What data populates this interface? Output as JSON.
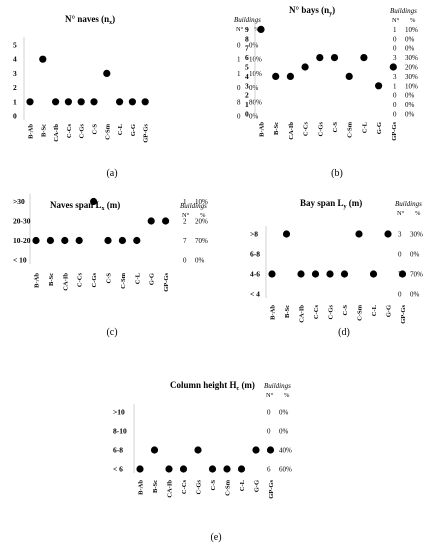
{
  "labels": {
    "buildings": "Buildings",
    "n_star": "N°",
    "pct": "%"
  },
  "chart_data": [
    {
      "type": "scatter",
      "id": "a",
      "title": "N° naves (n",
      "title_sub": "x",
      "title_end": ")",
      "caption": "(a)",
      "categories": [
        "B-Ab",
        "B-Sc",
        "CA-Ib",
        "C-Cs",
        "C-Gs",
        "C-S",
        "C-Sm",
        "C-L",
        "G-G",
        "GP-Gs"
      ],
      "y_ticks": [
        "0",
        "1",
        "2",
        "3",
        "4",
        "5"
      ],
      "values": [
        1,
        4,
        1,
        1,
        1,
        1,
        3,
        1,
        1,
        1
      ],
      "buildings_n": [
        "0",
        "8",
        "0",
        "1",
        "1",
        "0"
      ],
      "buildings_pct": [
        "0%",
        "80%",
        "0%",
        "10%",
        "10%",
        "0%"
      ]
    },
    {
      "type": "scatter",
      "id": "b",
      "title": "N° bays (n",
      "title_sub": "y",
      "title_end": ")",
      "caption": "(b)",
      "categories": [
        "B-Ab",
        "B-Sc",
        "CA-Ib",
        "C-Cs",
        "C-Gs",
        "C-S",
        "C-Sm",
        "C-L",
        "G-G",
        "GP-Gs"
      ],
      "y_ticks": [
        "0",
        "1",
        "2",
        "3",
        "4",
        "5",
        "6",
        "7",
        "8",
        "9"
      ],
      "values": [
        9,
        4,
        4,
        5,
        6,
        6,
        4,
        6,
        3,
        5
      ],
      "buildings_n": [
        "0",
        "0",
        "0",
        "1",
        "3",
        "2",
        "3",
        "0",
        "0",
        "1"
      ],
      "buildings_pct": [
        "0%",
        "0%",
        "0%",
        "10%",
        "30%",
        "20%",
        "30%",
        "0%",
        "0%",
        "10%"
      ]
    },
    {
      "type": "scatter",
      "id": "c",
      "title": "Naves span L",
      "title_sub": "x",
      "title_end": " (m)",
      "caption": "(c)",
      "categories": [
        "B-Ab",
        "B-Sc",
        "CA-Ib",
        "C-Cs",
        "C-Gs",
        "C-S",
        "C-Sm",
        "C-L",
        "G-G",
        "GP-Gs"
      ],
      "y_ticks": [
        "< 10",
        "10-20",
        "20-30",
        ">30"
      ],
      "values": [
        "10-20",
        "10-20",
        "10-20",
        "10-20",
        ">30",
        "10-20",
        "10-20",
        "10-20",
        "20-30",
        "20-30"
      ],
      "buildings_n": [
        "0",
        "7",
        "2",
        "1"
      ],
      "buildings_pct": [
        "0%",
        "70%",
        "20%",
        "10%"
      ]
    },
    {
      "type": "scatter",
      "id": "d",
      "title": "Bay span L",
      "title_sub": "y",
      "title_end": " (m)",
      "caption": "(d)",
      "categories": [
        "B-Ab",
        "B-Sc",
        "CA-Ib",
        "C-Cs",
        "C-Gs",
        "C-S",
        "C-Sm",
        "C-L",
        "G-G",
        "GP-Gs"
      ],
      "y_ticks": [
        "< 4",
        "4-6",
        "6-8",
        ">8"
      ],
      "values": [
        "4-6",
        ">8",
        "4-6",
        "4-6",
        "4-6",
        "4-6",
        ">8",
        "4-6",
        ">8",
        "4-6"
      ],
      "buildings_n": [
        "0",
        "7",
        "0",
        "3"
      ],
      "buildings_pct": [
        "0%",
        "70%",
        "0%",
        "30%"
      ]
    },
    {
      "type": "scatter",
      "id": "e",
      "title": "Column height H",
      "title_sub": "c",
      "title_end": " (m)",
      "caption": "(e)",
      "categories": [
        "B-Ab",
        "B-Sc",
        "CA-Ib",
        "C-Cs",
        "C-Gs",
        "C-S",
        "C-Sm",
        "C-L",
        "G-G",
        "GP-Gs"
      ],
      "y_ticks": [
        "< 6",
        "6-8",
        "8-10",
        ">10"
      ],
      "values": [
        "< 6",
        "6-8",
        "< 6",
        "< 6",
        "6-8",
        "< 6",
        "< 6",
        "< 6",
        "6-8",
        "6-8"
      ],
      "buildings_n": [
        "6",
        "4",
        "0",
        "0"
      ],
      "buildings_pct": [
        "60%",
        "40%",
        "0%",
        "0%"
      ]
    }
  ]
}
